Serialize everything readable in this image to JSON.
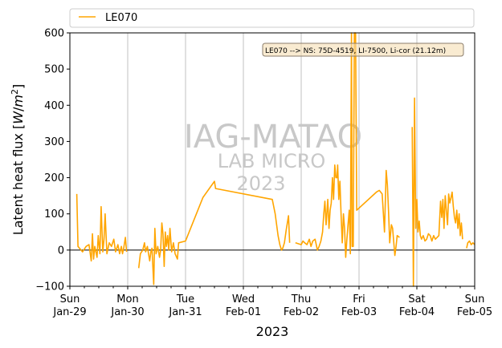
{
  "chart_data": {
    "type": "line",
    "title": "",
    "xlabel": "2023",
    "ylabel": "Latent heat flux [W/m²]",
    "ylabel_base": "Latent heat flux ",
    "ylabel_unit_open": "[",
    "ylabel_unit_W": "W",
    "ylabel_unit_slash": "/",
    "ylabel_unit_m": "m",
    "ylabel_unit_exp": "2",
    "ylabel_unit_close": "]",
    "ylim": [
      -100,
      600
    ],
    "xlim_days": [
      0,
      7
    ],
    "x_ticks": [
      {
        "day": "Sun",
        "date": "Jan-29"
      },
      {
        "day": "Mon",
        "date": "Jan-30"
      },
      {
        "day": "Tue",
        "date": "Jan-31"
      },
      {
        "day": "Wed",
        "date": "Feb-01"
      },
      {
        "day": "Thu",
        "date": "Feb-02"
      },
      {
        "day": "Fri",
        "date": "Feb-03"
      },
      {
        "day": "Sat",
        "date": "Feb-04"
      },
      {
        "day": "Sun",
        "date": "Feb-05"
      }
    ],
    "y_ticks": [
      -100,
      0,
      100,
      200,
      300,
      400,
      500,
      600
    ],
    "grid": "vertical",
    "zero_line": true,
    "legend": {
      "position": "top",
      "entries": [
        "LE070"
      ]
    },
    "annotation": "LE070 --> NS: 75D-4519, LI-7500, Li-cor (21.12m)",
    "watermark": {
      "line1": "IAG-MATAO",
      "line2": "LAB MICRO",
      "line3": "2023"
    },
    "colors": {
      "series": "#ffa500",
      "grid": "#c0c0c0",
      "annot_bg": "#f5deb3",
      "annot_border": "#8b7d6b"
    },
    "series": [
      {
        "name": "LE070",
        "segments": [
          [
            [
              0.12,
              155
            ],
            [
              0.14,
              10
            ],
            [
              0.22,
              -5
            ],
            [
              0.28,
              10
            ],
            [
              0.33,
              15
            ],
            [
              0.37,
              -30
            ],
            [
              0.39,
              45
            ],
            [
              0.41,
              -25
            ],
            [
              0.43,
              10
            ],
            [
              0.47,
              -20
            ],
            [
              0.49,
              40
            ],
            [
              0.52,
              -10
            ],
            [
              0.54,
              120
            ],
            [
              0.57,
              -5
            ],
            [
              0.59,
              30
            ],
            [
              0.61,
              100
            ],
            [
              0.64,
              -10
            ],
            [
              0.68,
              20
            ],
            [
              0.72,
              10
            ],
            [
              0.76,
              30
            ],
            [
              0.79,
              -5
            ],
            [
              0.83,
              15
            ],
            [
              0.86,
              -10
            ],
            [
              0.89,
              10
            ],
            [
              0.91,
              -10
            ],
            [
              0.93,
              5
            ],
            [
              0.96,
              35
            ],
            [
              0.98,
              -5
            ]
          ],
          [
            [
              1.19,
              -50
            ],
            [
              1.22,
              -10
            ],
            [
              1.26,
              0
            ],
            [
              1.29,
              20
            ],
            [
              1.31,
              -5
            ],
            [
              1.34,
              10
            ],
            [
              1.36,
              -10
            ],
            [
              1.38,
              -30
            ],
            [
              1.4,
              -5
            ],
            [
              1.42,
              5
            ],
            [
              1.45,
              -95
            ],
            [
              1.47,
              60
            ],
            [
              1.49,
              -10
            ],
            [
              1.52,
              10
            ],
            [
              1.55,
              -20
            ],
            [
              1.57,
              0
            ],
            [
              1.59,
              75
            ],
            [
              1.61,
              45
            ],
            [
              1.63,
              -45
            ],
            [
              1.65,
              50
            ],
            [
              1.67,
              10
            ],
            [
              1.69,
              40
            ],
            [
              1.71,
              0
            ],
            [
              1.73,
              60
            ],
            [
              1.76,
              -5
            ],
            [
              1.79,
              20
            ],
            [
              1.82,
              -10
            ],
            [
              1.86,
              -25
            ],
            [
              1.88,
              20
            ],
            [
              2.0,
              25
            ],
            [
              2.3,
              145
            ],
            [
              2.5,
              190
            ],
            [
              2.52,
              170
            ],
            [
              3.5,
              140
            ],
            [
              3.55,
              100
            ],
            [
              3.6,
              40
            ],
            [
              3.63,
              15
            ],
            [
              3.66,
              0
            ],
            [
              3.68,
              5
            ],
            [
              3.71,
              20
            ],
            [
              3.74,
              55
            ],
            [
              3.78,
              95
            ],
            [
              3.8,
              20
            ]
          ],
          [
            [
              3.9,
              20
            ],
            [
              4.0,
              15
            ],
            [
              4.03,
              25
            ],
            [
              4.06,
              20
            ],
            [
              4.1,
              15
            ],
            [
              4.14,
              30
            ],
            [
              4.17,
              10
            ],
            [
              4.2,
              25
            ],
            [
              4.24,
              30
            ],
            [
              4.28,
              0
            ],
            [
              4.31,
              10
            ],
            [
              4.34,
              25
            ],
            [
              4.37,
              50
            ],
            [
              4.39,
              100
            ],
            [
              4.41,
              135
            ],
            [
              4.43,
              70
            ],
            [
              4.46,
              140
            ],
            [
              4.48,
              60
            ],
            [
              4.5,
              110
            ],
            [
              4.52,
              130
            ],
            [
              4.54,
              200
            ],
            [
              4.56,
              140
            ],
            [
              4.58,
              235
            ],
            [
              4.6,
              200
            ],
            [
              4.62,
              200
            ],
            [
              4.63,
              235
            ],
            [
              4.65,
              140
            ],
            [
              4.67,
              190
            ],
            [
              4.69,
              95
            ],
            [
              4.71,
              20
            ],
            [
              4.73,
              100
            ],
            [
              4.75,
              60
            ],
            [
              4.77,
              -20
            ],
            [
              4.79,
              30
            ],
            [
              4.81,
              70
            ],
            [
              4.83,
              110
            ],
            [
              4.85,
              -10
            ],
            [
              4.87,
              600
            ],
            [
              4.88,
              10
            ],
            [
              4.9,
              10
            ],
            [
              4.92,
              600
            ],
            [
              4.94,
              600
            ],
            [
              4.96,
              110
            ],
            [
              5.3,
              160
            ],
            [
              5.35,
              165
            ],
            [
              5.4,
              155
            ],
            [
              5.44,
              50
            ],
            [
              5.47,
              220
            ],
            [
              5.49,
              180
            ],
            [
              5.51,
              110
            ],
            [
              5.53,
              20
            ],
            [
              5.56,
              70
            ],
            [
              5.58,
              60
            ],
            [
              5.62,
              -15
            ],
            [
              5.64,
              10
            ],
            [
              5.66,
              40
            ],
            [
              5.7,
              35
            ]
          ],
          [
            [
              5.92,
              340
            ],
            [
              5.94,
              -100
            ],
            [
              5.96,
              420
            ],
            [
              5.98,
              60
            ],
            [
              6.0,
              140
            ],
            [
              6.02,
              50
            ],
            [
              6.04,
              80
            ],
            [
              6.06,
              40
            ],
            [
              6.08,
              30
            ],
            [
              6.11,
              40
            ],
            [
              6.14,
              25
            ],
            [
              6.17,
              30
            ],
            [
              6.2,
              45
            ],
            [
              6.23,
              40
            ],
            [
              6.26,
              25
            ],
            [
              6.29,
              40
            ],
            [
              6.32,
              30
            ],
            [
              6.35,
              35
            ],
            [
              6.38,
              40
            ],
            [
              6.41,
              135
            ],
            [
              6.43,
              90
            ],
            [
              6.45,
              140
            ],
            [
              6.47,
              60
            ],
            [
              6.49,
              150
            ],
            [
              6.51,
              110
            ],
            [
              6.53,
              70
            ],
            [
              6.55,
              155
            ],
            [
              6.57,
              130
            ],
            [
              6.59,
              145
            ],
            [
              6.61,
              160
            ],
            [
              6.63,
              120
            ],
            [
              6.65,
              90
            ],
            [
              6.67,
              75
            ],
            [
              6.69,
              110
            ],
            [
              6.71,
              60
            ],
            [
              6.73,
              100
            ],
            [
              6.75,
              40
            ],
            [
              6.77,
              75
            ],
            [
              6.79,
              30
            ]
          ],
          [
            [
              6.86,
              5
            ],
            [
              6.88,
              20
            ],
            [
              6.91,
              25
            ],
            [
              6.94,
              15
            ],
            [
              6.97,
              20
            ],
            [
              7.0,
              15
            ]
          ]
        ]
      }
    ]
  }
}
